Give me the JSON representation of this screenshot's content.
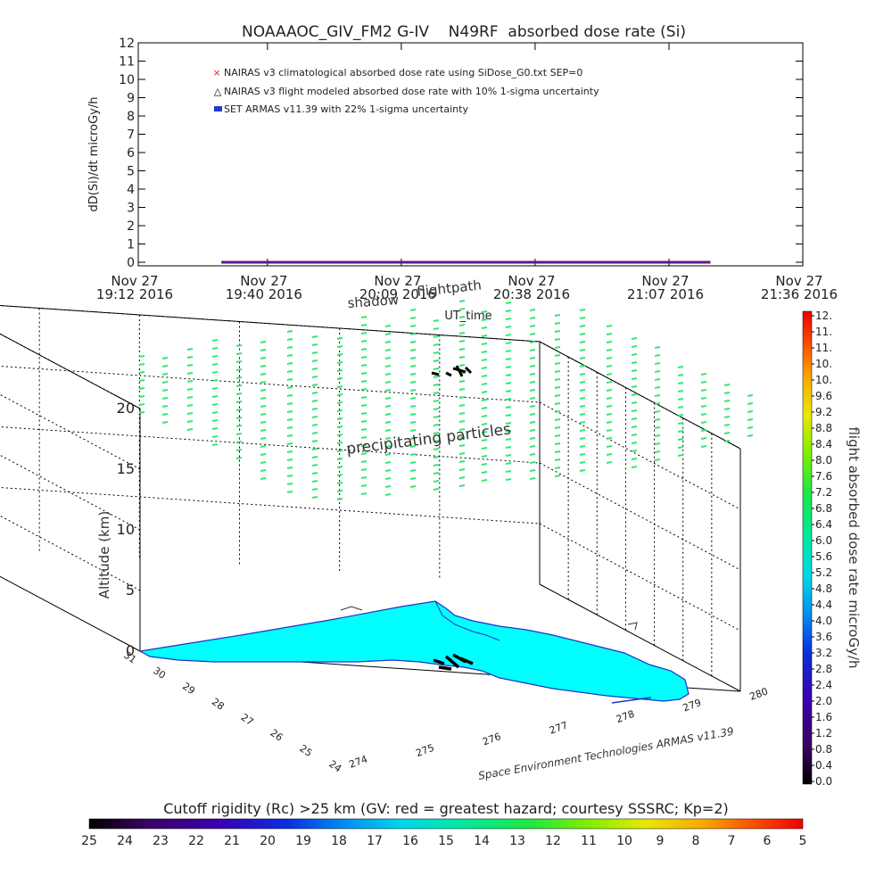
{
  "chart_data": [
    {
      "type": "line",
      "title": "NOAAAOC_GIV_FM2 G-IV    N49RF  absorbed dose rate (Si)",
      "xlabel": "UT_time",
      "ylabel": "dD(Si)/dt microGy/h",
      "ylim": [
        0,
        12
      ],
      "yticks": [
        "0",
        "1",
        "2",
        "3",
        "4",
        "5",
        "6",
        "7",
        "8",
        "9",
        "10",
        "11",
        "12"
      ],
      "xticks": [
        {
          "line1": "Nov 27",
          "line2": "19:12 2016"
        },
        {
          "line1": "Nov 27",
          "line2": "19:40 2016"
        },
        {
          "line1": "Nov 27",
          "line2": "20:09 2016"
        },
        {
          "line1": "Nov 27",
          "line2": "20:38 2016"
        },
        {
          "line1": "Nov 27",
          "line2": "21:07 2016"
        },
        {
          "line1": "Nov 27",
          "line2": "21:36 2016"
        }
      ],
      "xlim": [
        "19:12",
        "21:36"
      ],
      "legend": [
        {
          "marker": "x",
          "color": "#cc2a2a",
          "label": "NAIRAS v3 climatological absorbed dose rate using SiDose_G0.txt SEP=0"
        },
        {
          "marker": "triangle",
          "color": "#000000",
          "label": "NAIRAS v3 flight modeled absorbed dose rate with 10% 1-sigma uncertainty"
        },
        {
          "marker": "square",
          "color": "#1f3fd0",
          "label": "SET ARMAS v11.39 with 22% 1-sigma uncertainty"
        }
      ],
      "series": [
        {
          "name": "NAIRAS v3 flight modeled absorbed dose rate with 10% 1-sigma uncertainty",
          "x_range": [
            "19:30",
            "21:16"
          ],
          "value": 0
        }
      ]
    },
    {
      "type": "scatter",
      "zlabel": "Altitude (km)",
      "zticks": [
        "0",
        "5",
        "10",
        "15",
        "20"
      ],
      "lat_ticks": [
        "31",
        "30",
        "29",
        "28",
        "27",
        "26",
        "25",
        "24"
      ],
      "lon_ticks": [
        "274",
        "275",
        "276",
        "277",
        "278",
        "279",
        "280"
      ],
      "annotations": {
        "shadow": "shadow",
        "flightpath": "flightpath",
        "particles": "precipitating particles",
        "credit": "Space Environment Technologies ARMAS v11.39"
      },
      "colorbar": {
        "label": "flight absorbed dose rate microGy/h",
        "ticks": [
          "0.0",
          "0.4",
          "0.8",
          "1.2",
          "1.6",
          "2.0",
          "2.4",
          "2.8",
          "3.2",
          "3.6",
          "4.0",
          "4.4",
          "4.8",
          "5.2",
          "5.6",
          "6.0",
          "6.4",
          "6.8",
          "7.2",
          "7.6",
          "8.0",
          "8.4",
          "8.8",
          "9.2",
          "9.6",
          "10.",
          "10.",
          "11.",
          "11.",
          "12."
        ]
      },
      "particle_color": "#33e870",
      "land_color": "#00ffff",
      "coast_color": "#1c34c8"
    },
    {
      "type": "heatmap",
      "title": "Cutoff rigidity (Rc) >25 km (GV: red = greatest hazard; courtesy SSSRC; Kp=2)",
      "ticks": [
        "25",
        "24",
        "23",
        "22",
        "21",
        "20",
        "19",
        "18",
        "17",
        "16",
        "15",
        "14",
        "13",
        "12",
        "11",
        "10",
        "9",
        "8",
        "7",
        "6",
        "5"
      ]
    }
  ]
}
